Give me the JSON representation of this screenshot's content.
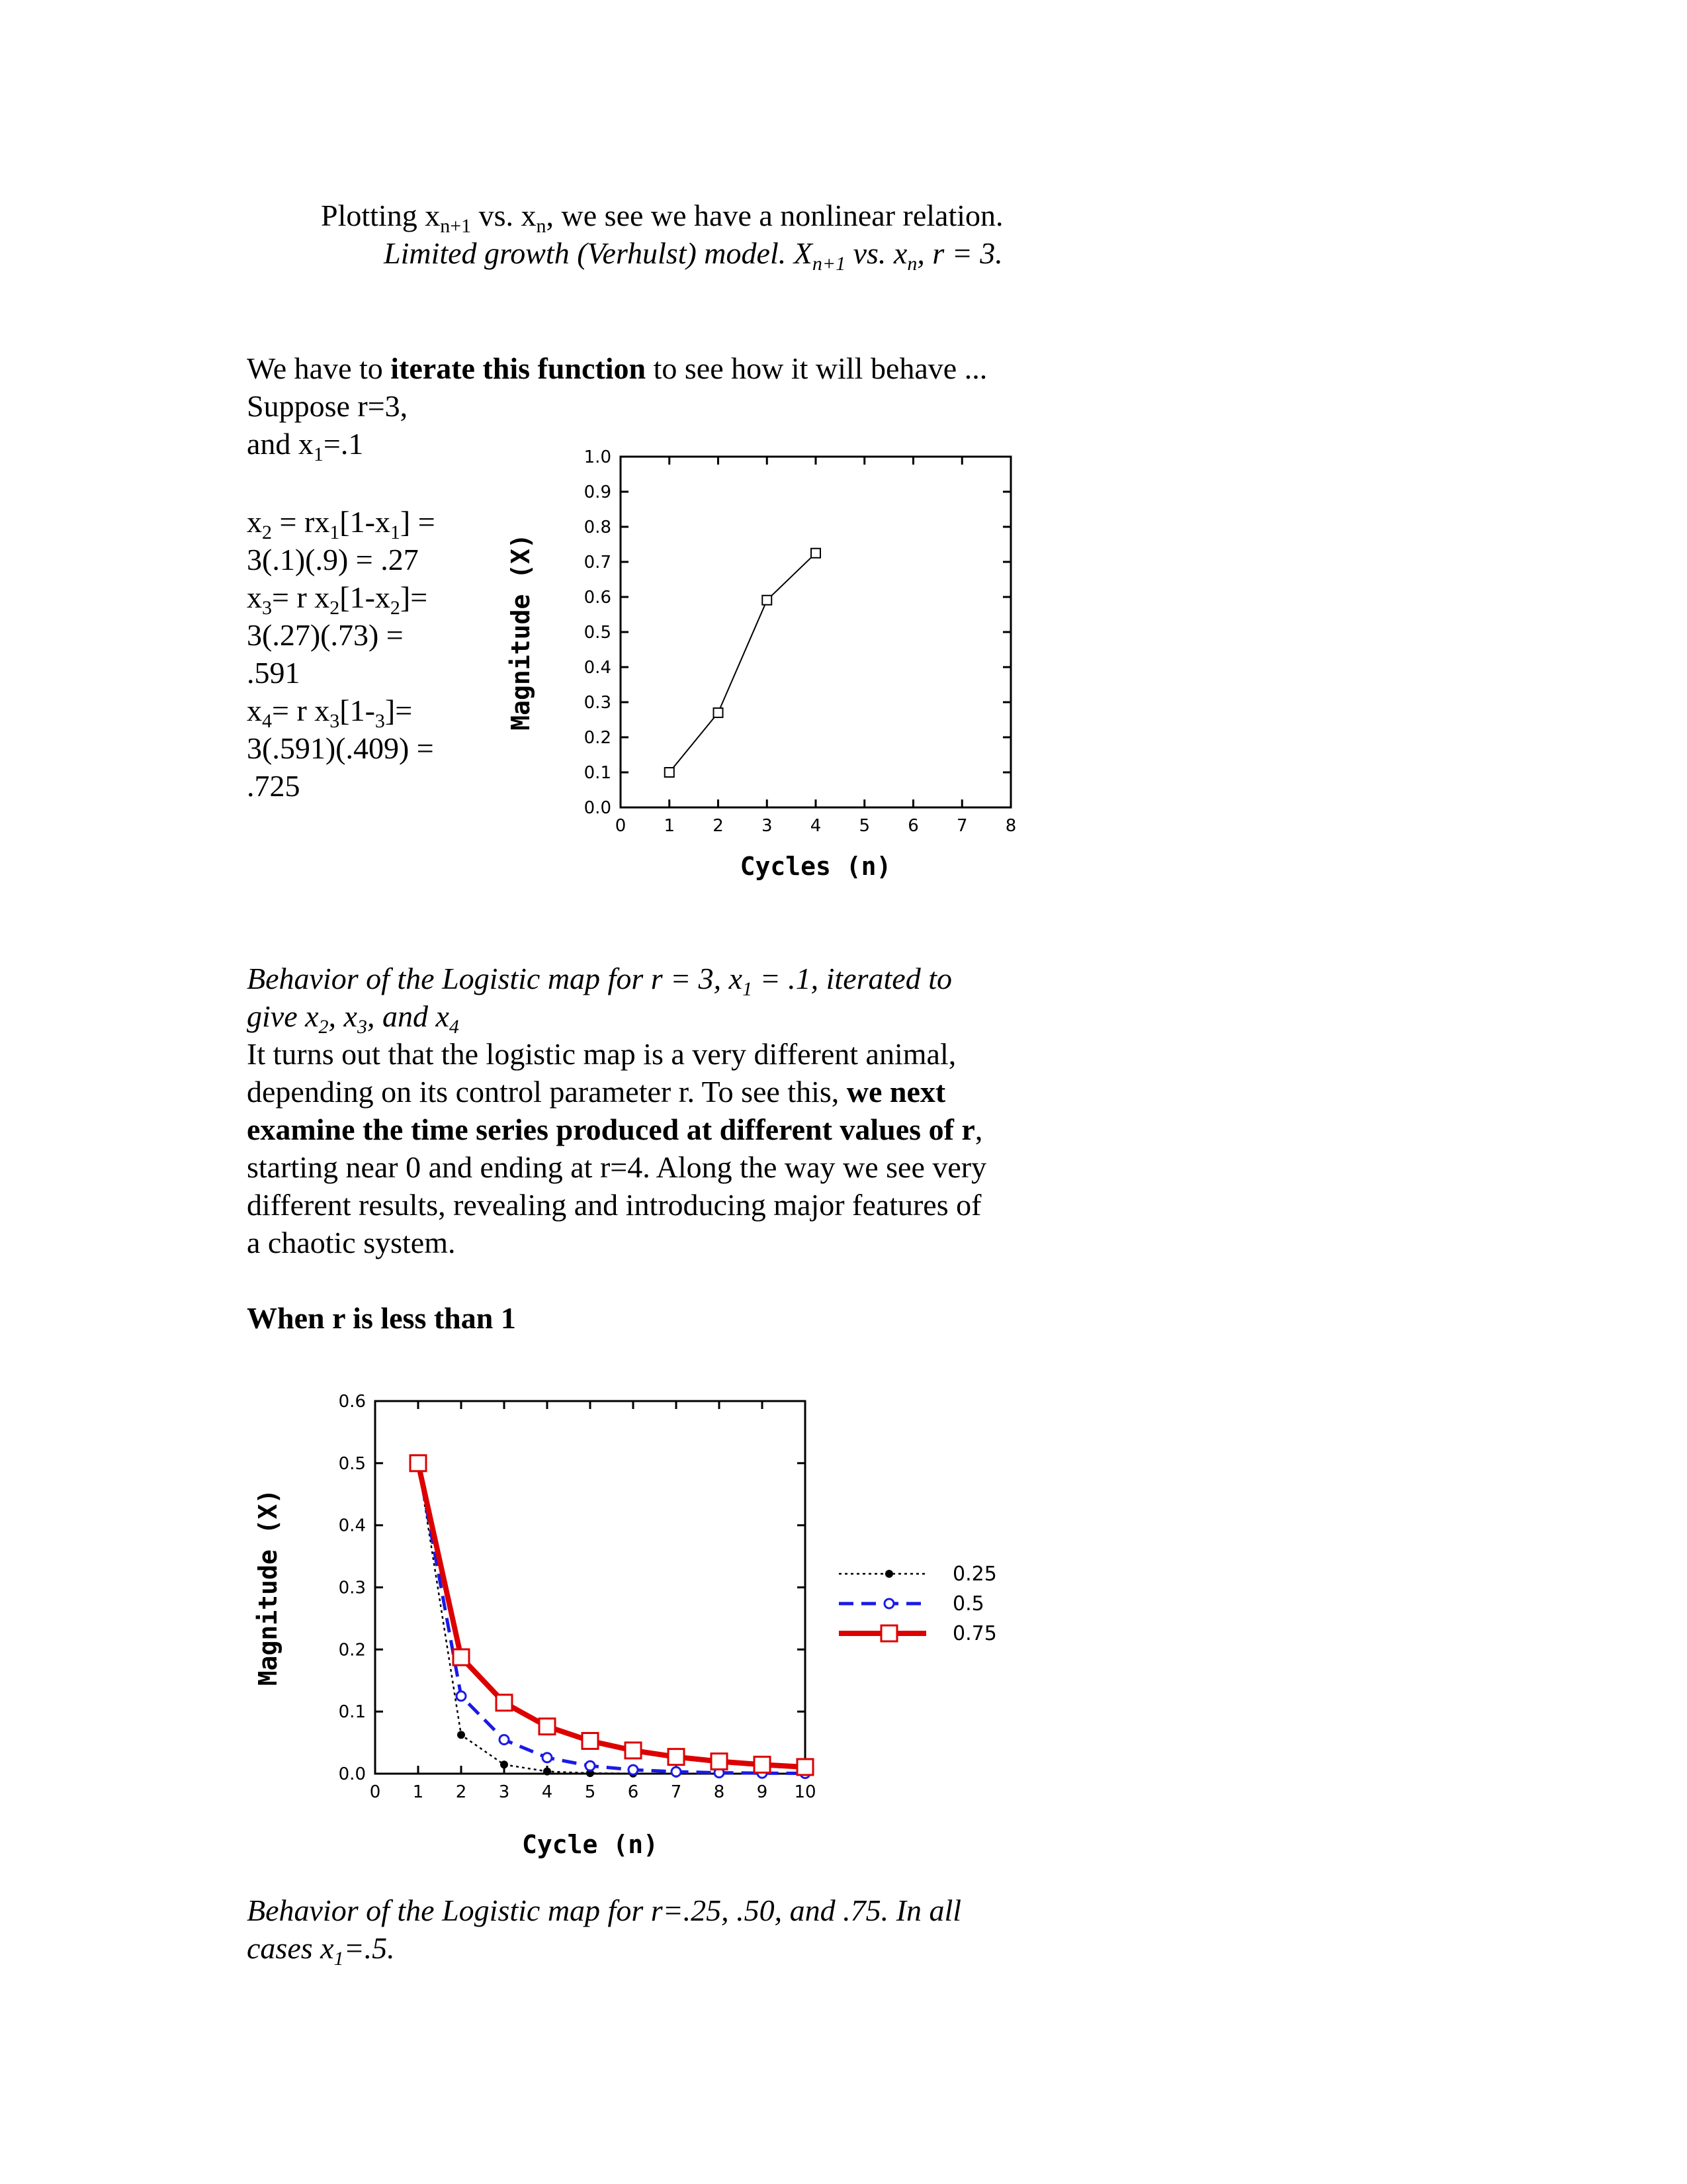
{
  "intro": {
    "line1_a": "Plotting x",
    "line1_sub1": "n+1",
    "line1_b": " vs. x",
    "line1_sub2": "n",
    "line1_c": ", we see we have a nonlinear relation.",
    "line2_a": "Limited growth (Verhulst) model. X",
    "line2_sub1": "n+1",
    "line2_b": " vs. x",
    "line2_sub2": "n",
    "line2_c": ", r = 3."
  },
  "iterate": {
    "a": "We have to ",
    "bold": "iterate this function",
    "b": " to see how it will behave ...",
    "suppose": "Suppose r=3,",
    "x1_a": "and x",
    "x1_sub": "1",
    "x1_b": "=.1"
  },
  "calc": {
    "l1_a": "x",
    "l1_s1": "2",
    "l1_b": " = rx",
    "l1_s2": "1",
    "l1_c": "[1-x",
    "l1_s3": "1",
    "l1_d": "] =",
    "l2": "3(.1)(.9) = .27",
    "l3_a": "x",
    "l3_s1": "3",
    "l3_b": "= r x",
    "l3_s2": "2",
    "l3_c": "[1-x",
    "l3_s3": "2",
    "l3_d": "]=",
    "l4": "3(.27)(.73) =",
    "l5": ".591",
    "l6_a": "x",
    "l6_s1": "4",
    "l6_b": "= r x",
    "l6_s2": "3",
    "l6_c": "[1-",
    "l6_s3": "3",
    "l6_d": "]=",
    "l7": "3(.591)(.409) =",
    "l8": ".725"
  },
  "caption1": {
    "a": "Behavior of the Logistic map for r = 3, x",
    "s1": "1",
    "b": " = .1, iterated to",
    "c": "give x",
    "s2": "2",
    "d": ", x",
    "s3": "3",
    "e": ", and x",
    "s4": "4"
  },
  "para": {
    "a": "It turns out that the logistic map is a very different animal,",
    "b": "depending on its control parameter r. To see this, ",
    "bold1": "we next",
    "bold2": "examine the time series produced at different values of r",
    "c": ",",
    "d": "starting near 0 and ending at r=4. Along the way we see very",
    "e": "different results, revealing and introducing major features of",
    "f": "a chaotic system."
  },
  "heading": "When r is less than 1",
  "caption2": {
    "a": "Behavior of the Logistic map for r=.25, .50, and .75. In all",
    "b": "cases x",
    "s1": "1",
    "c": "=.5."
  },
  "chart_data": [
    {
      "type": "line",
      "title": "",
      "xlabel": "Cycles (n)",
      "ylabel": "Magnitude (X)",
      "xlim": [
        0,
        8
      ],
      "ylim": [
        0,
        1.0
      ],
      "xticks": [
        "0",
        "1",
        "2",
        "3",
        "4",
        "5",
        "6",
        "7",
        "8"
      ],
      "yticks": [
        "0.0",
        "0.1",
        "0.2",
        "0.3",
        "0.4",
        "0.5",
        "0.6",
        "0.7",
        "0.8",
        "0.9",
        "1.0"
      ],
      "series": [
        {
          "x": [
            1,
            2,
            3,
            4
          ],
          "y": [
            0.1,
            0.27,
            0.591,
            0.725
          ],
          "color": "#000000"
        }
      ],
      "grid": false
    },
    {
      "type": "line",
      "title": "",
      "xlabel": "Cycle (n)",
      "ylabel": "Magnitude (X)",
      "xlim": [
        0,
        10
      ],
      "ylim": [
        0,
        0.6
      ],
      "xticks": [
        "0",
        "1",
        "2",
        "3",
        "4",
        "5",
        "6",
        "7",
        "8",
        "9",
        "10"
      ],
      "yticks": [
        "0.0",
        "0.1",
        "0.2",
        "0.3",
        "0.4",
        "0.5",
        "0.6"
      ],
      "legend_position": "right",
      "grid": false,
      "series": [
        {
          "name": "0.25",
          "color": "#000000",
          "x": [
            1,
            2,
            3,
            4,
            5,
            6,
            7,
            8,
            9,
            10
          ],
          "y": [
            0.5,
            0.0625,
            0.0146,
            0.0036,
            0.0009,
            0.0002,
            0.0001,
            0.0,
            0.0,
            0.0
          ]
        },
        {
          "name": "0.5",
          "color": "#1a1ae6",
          "x": [
            1,
            2,
            3,
            4,
            5,
            6,
            7,
            8,
            9,
            10
          ],
          "y": [
            0.5,
            0.125,
            0.0547,
            0.0258,
            0.0126,
            0.0062,
            0.0031,
            0.0015,
            0.0008,
            0.0004
          ]
        },
        {
          "name": "0.75",
          "color": "#dd0000",
          "x": [
            1,
            2,
            3,
            4,
            5,
            6,
            7,
            8,
            9,
            10
          ],
          "y": [
            0.5,
            0.1875,
            0.1143,
            0.076,
            0.0527,
            0.0374,
            0.027,
            0.0197,
            0.0145,
            0.0107
          ]
        }
      ]
    }
  ]
}
